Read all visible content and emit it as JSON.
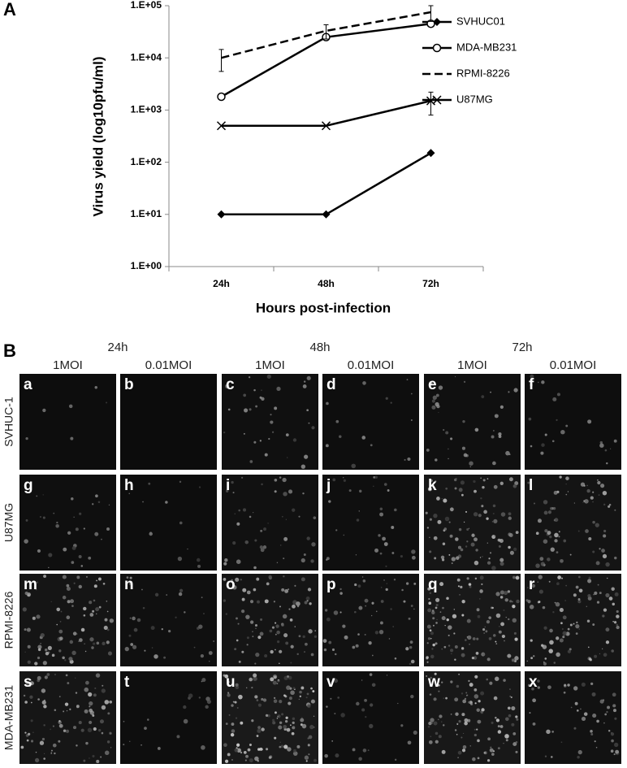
{
  "panel_labels": [
    "A",
    "B"
  ],
  "chart_data": {
    "type": "line",
    "x_label": "Hours post-infection",
    "y_label": "Virus yield (log10pfu/ml)",
    "categories": [
      "24h",
      "48h",
      "72h"
    ],
    "ylim": [
      1,
      100000
    ],
    "log_scale": true,
    "grid": false,
    "legend": "right",
    "yticks": [
      {
        "value": 1,
        "label": "1.E+00"
      },
      {
        "value": 10,
        "label": "1.E+01"
      },
      {
        "value": 100,
        "label": "1.E+02"
      },
      {
        "value": 1000,
        "label": "1.E+03"
      },
      {
        "value": 10000,
        "label": "1.E+04"
      },
      {
        "value": 100000,
        "label": "1.E+05"
      }
    ],
    "series": [
      {
        "name": "SVHUC01",
        "color": "#000000",
        "marker": "diamond",
        "dash": false,
        "values": [
          10,
          10,
          150
        ],
        "errors": [
          null,
          null,
          null
        ]
      },
      {
        "name": "MDA-MB231",
        "color": "#000000",
        "marker": "circle",
        "dash": false,
        "values": [
          1800,
          25000,
          45000
        ],
        "errors": [
          null,
          null,
          null
        ]
      },
      {
        "name": "RPMI-8226",
        "color": "#000000",
        "marker": "none",
        "dash": true,
        "values": [
          10000,
          33000,
          75000
        ],
        "errors": [
          4500,
          10000,
          25000
        ]
      },
      {
        "name": "U87MG",
        "color": "#000000",
        "marker": "x",
        "dash": false,
        "values": [
          500,
          500,
          1500
        ],
        "errors": [
          null,
          null,
          700
        ]
      }
    ]
  },
  "panel_b": {
    "times": [
      "24h",
      "48h",
      "72h"
    ],
    "conditions": [
      "1MOI",
      "0.01MOI",
      "1MOI",
      "0.01MOI",
      "1MOI",
      "0.01MOI"
    ],
    "rows": [
      "SVHUC-1",
      "U87MG",
      "RPMI-8226",
      "MDA-MB231"
    ],
    "letters": [
      [
        "a",
        "b",
        "c",
        "d",
        "e",
        "f"
      ],
      [
        "g",
        "h",
        "i",
        "j",
        "k",
        "l"
      ],
      [
        "m",
        "n",
        "o",
        "p",
        "q",
        "r"
      ],
      [
        "s",
        "t",
        "u",
        "v",
        "w",
        "x"
      ]
    ]
  }
}
